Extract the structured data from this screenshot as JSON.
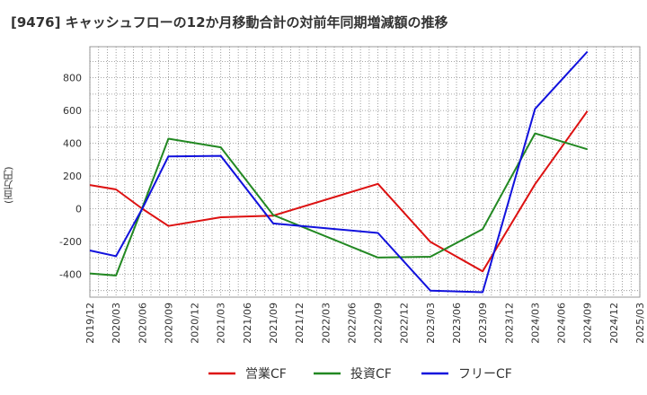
{
  "chart_data": {
    "type": "line",
    "title": "[9476]  キャッシュフローの12か月移動合計の対前年同期増減額の推移",
    "ylabel": "(百万円)",
    "xlabel": "",
    "ylim": [
      -540,
      990
    ],
    "y_ticks": [
      -400,
      -200,
      0,
      200,
      400,
      600,
      800
    ],
    "x_tick_labels": [
      "2019/12",
      "2020/03",
      "2020/06",
      "2020/09",
      "2020/12",
      "2021/03",
      "2021/06",
      "2021/09",
      "2021/12",
      "2022/03",
      "2022/06",
      "2022/09",
      "2022/12",
      "2023/03",
      "2023/06",
      "2023/09",
      "2023/12",
      "2024/03",
      "2024/06",
      "2024/09",
      "2024/12",
      "2025/03"
    ],
    "grid": true,
    "legend_position": "bottom",
    "series": [
      {
        "name": "営業CF",
        "color": "#dd1111",
        "points": [
          [
            "2019/12",
            145
          ],
          [
            "2020/03",
            118
          ],
          [
            "2020/06",
            0
          ],
          [
            "2020/09",
            -105
          ],
          [
            "2021/03",
            -52
          ],
          [
            "2021/09",
            -42
          ],
          [
            "2022/09",
            152
          ],
          [
            "2023/03",
            -202
          ],
          [
            "2023/09",
            -382
          ],
          [
            "2024/03",
            150
          ],
          [
            "2024/09",
            597
          ]
        ]
      },
      {
        "name": "投資CF",
        "color": "#228822",
        "points": [
          [
            "2019/12",
            -395
          ],
          [
            "2020/03",
            -408
          ],
          [
            "2020/06",
            5
          ],
          [
            "2020/09",
            428
          ],
          [
            "2021/03",
            375
          ],
          [
            "2021/09",
            -38
          ],
          [
            "2022/09",
            -298
          ],
          [
            "2023/03",
            -293
          ],
          [
            "2023/09",
            -125
          ],
          [
            "2024/03",
            460
          ],
          [
            "2024/09",
            363
          ]
        ]
      },
      {
        "name": "フリーCF",
        "color": "#1111dd",
        "points": [
          [
            "2019/12",
            -255
          ],
          [
            "2020/03",
            -290
          ],
          [
            "2020/06",
            0
          ],
          [
            "2020/09",
            320
          ],
          [
            "2021/03",
            323
          ],
          [
            "2021/09",
            -90
          ],
          [
            "2022/09",
            -148
          ],
          [
            "2023/03",
            -500
          ],
          [
            "2023/09",
            -510
          ],
          [
            "2024/03",
            610
          ],
          [
            "2024/09",
            960
          ]
        ]
      }
    ]
  }
}
